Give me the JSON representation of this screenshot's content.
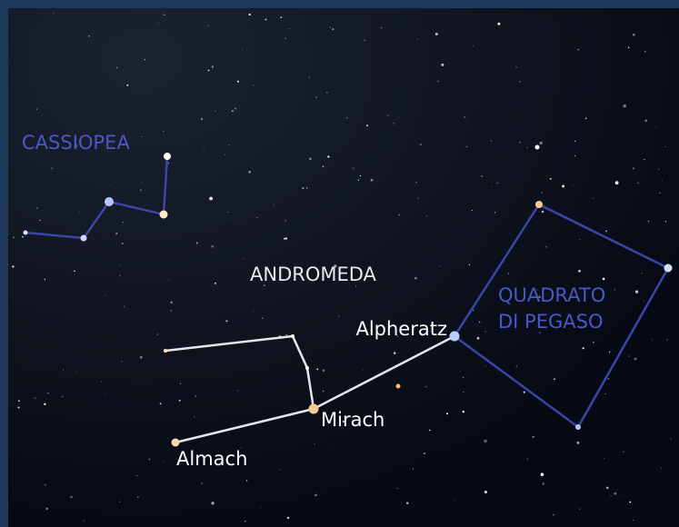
{
  "constellations": {
    "cassiopeia": "CASSIOPEA",
    "andromeda": "ANDROMEDA",
    "pegasus": [
      "QUADRATO",
      "DI PEGASO"
    ]
  },
  "stars": [
    "Alpheratz",
    "Mirach",
    "Almach"
  ]
}
